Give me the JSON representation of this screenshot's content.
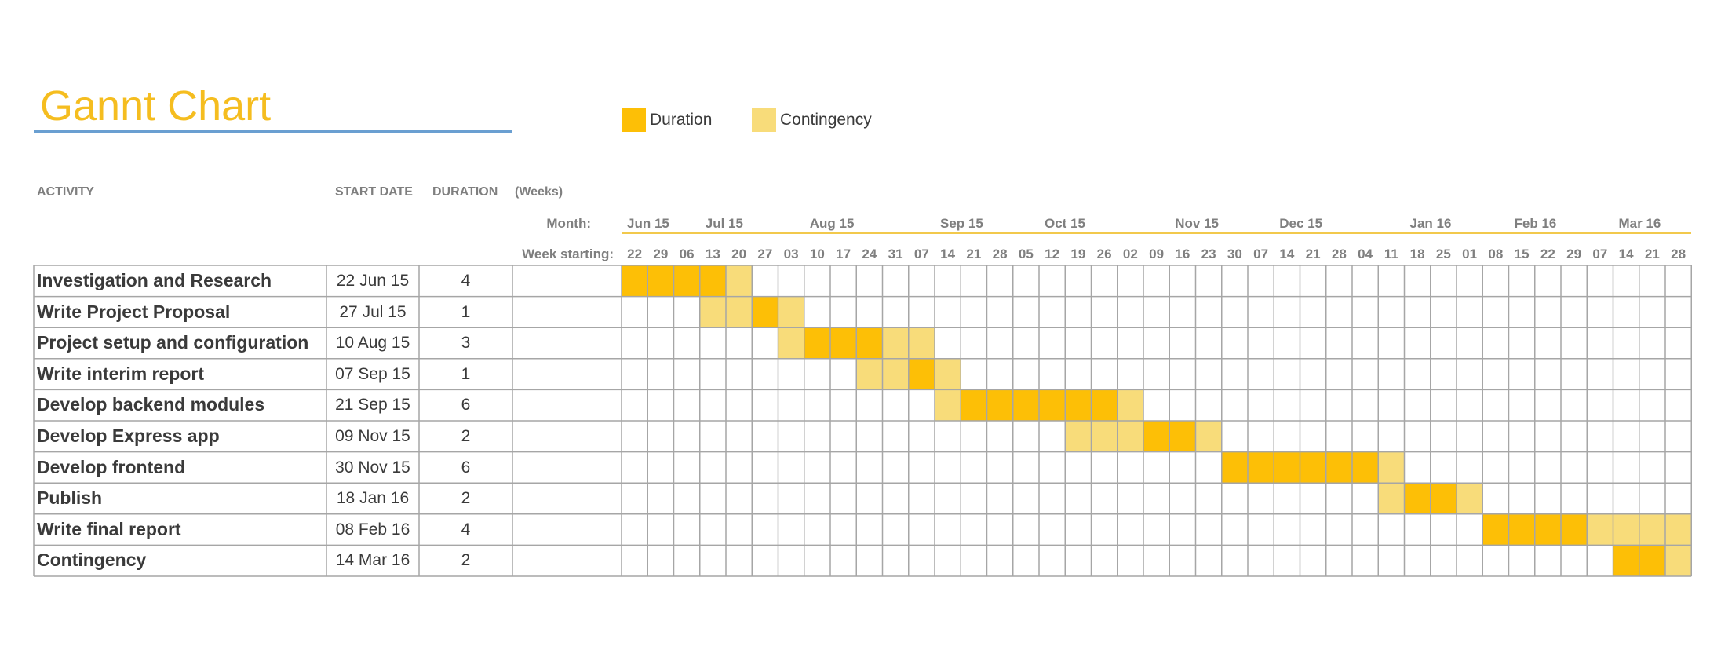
{
  "title": "Gannt Chart",
  "colors": {
    "title": "#f5bd1f",
    "rule": "#6a9fd1",
    "duration": "#fdbf06",
    "contingency": "#f8dc7a",
    "grid": "#a6a6a6"
  },
  "legend": [
    {
      "label": "Duration",
      "color": "#fdbf06"
    },
    {
      "label": "Contingency",
      "color": "#f8dc7a"
    }
  ],
  "headers": {
    "activity": "ACTIVITY",
    "start_date": "START DATE",
    "duration": "DURATION",
    "weeks": "(Weeks)",
    "month_label": "Month:",
    "week_label": "Week starting:"
  },
  "chart_data": {
    "type": "gantt",
    "months": [
      {
        "label": "Jun 15",
        "start_index": 0
      },
      {
        "label": "Jul 15",
        "start_index": 3
      },
      {
        "label": "Aug 15",
        "start_index": 7
      },
      {
        "label": "Sep 15",
        "start_index": 12
      },
      {
        "label": "Oct 15",
        "start_index": 16
      },
      {
        "label": "Nov 15",
        "start_index": 21
      },
      {
        "label": "Dec 15",
        "start_index": 25
      },
      {
        "label": "Jan 16",
        "start_index": 30
      },
      {
        "label": "Feb 16",
        "start_index": 34
      },
      {
        "label": "Mar 16",
        "start_index": 38
      }
    ],
    "weeks": [
      "22",
      "29",
      "06",
      "13",
      "20",
      "27",
      "03",
      "10",
      "17",
      "24",
      "31",
      "07",
      "14",
      "21",
      "28",
      "05",
      "12",
      "19",
      "26",
      "02",
      "09",
      "16",
      "23",
      "30",
      "07",
      "14",
      "21",
      "28",
      "04",
      "11",
      "18",
      "25",
      "01",
      "08",
      "15",
      "22",
      "29",
      "07",
      "14",
      "21",
      "28"
    ],
    "tasks": [
      {
        "activity": "Investigation and Research",
        "start": "22 Jun 15",
        "duration": "4",
        "duration_weeks": [
          0,
          1,
          2,
          3
        ],
        "contingency_weeks": [
          4
        ]
      },
      {
        "activity": "Write Project Proposal",
        "start": "27 Jul 15",
        "duration": "1",
        "duration_weeks": [
          5
        ],
        "contingency_weeks": [
          3,
          4,
          6
        ]
      },
      {
        "activity": "Project setup and configuration",
        "start": "10 Aug 15",
        "duration": "3",
        "duration_weeks": [
          7,
          8,
          9
        ],
        "contingency_weeks": [
          6,
          10,
          11
        ]
      },
      {
        "activity": "Write interim report",
        "start": "07 Sep 15",
        "duration": "1",
        "duration_weeks": [
          11
        ],
        "contingency_weeks": [
          9,
          10,
          12
        ]
      },
      {
        "activity": "Develop backend modules",
        "start": "21 Sep 15",
        "duration": "6",
        "duration_weeks": [
          13,
          14,
          15,
          16,
          17,
          18
        ],
        "contingency_weeks": [
          12,
          19
        ]
      },
      {
        "activity": "Develop Express app",
        "start": "09 Nov 15",
        "duration": "2",
        "duration_weeks": [
          20,
          21
        ],
        "contingency_weeks": [
          17,
          18,
          19,
          22
        ]
      },
      {
        "activity": "Develop frontend",
        "start": "30 Nov 15",
        "duration": "6",
        "duration_weeks": [
          23,
          24,
          25,
          26,
          27,
          28
        ],
        "contingency_weeks": [
          29
        ]
      },
      {
        "activity": "Publish",
        "start": "18 Jan 16",
        "duration": "2",
        "duration_weeks": [
          30,
          31
        ],
        "contingency_weeks": [
          29,
          32
        ]
      },
      {
        "activity": "Write final report",
        "start": "08 Feb 16",
        "duration": "4",
        "duration_weeks": [
          33,
          34,
          35,
          36
        ],
        "contingency_weeks": [
          37,
          38,
          39,
          40
        ]
      },
      {
        "activity": "Contingency",
        "start": "14 Mar 16",
        "duration": "2",
        "duration_weeks": [
          38,
          39
        ],
        "contingency_weeks": [
          40
        ]
      }
    ]
  }
}
